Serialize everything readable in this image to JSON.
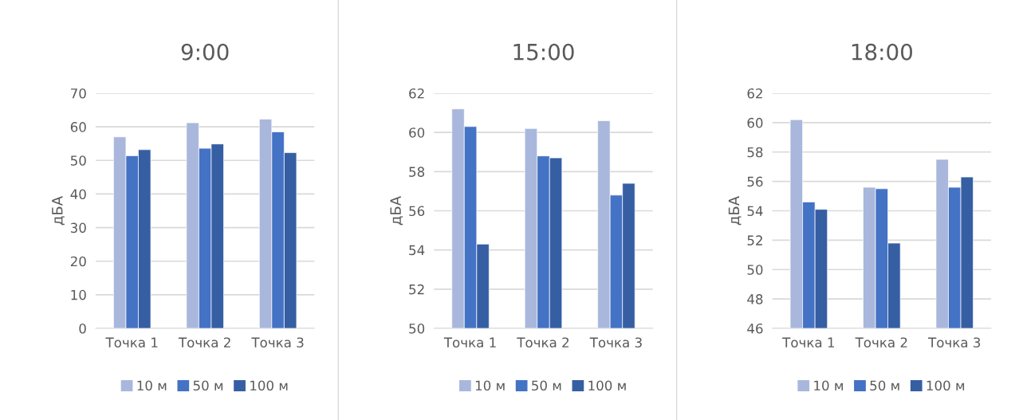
{
  "chart_data": [
    {
      "type": "bar",
      "title": "9:00",
      "ylabel": "дБА",
      "categories": [
        "Точка 1",
        "Точка 2",
        "Точка 3"
      ],
      "series": [
        {
          "name": "10 м",
          "color": "#a9b7dc",
          "values": [
            57.0,
            61.2,
            62.3
          ]
        },
        {
          "name": "50 м",
          "color": "#4472c4",
          "values": [
            51.4,
            53.6,
            58.5
          ]
        },
        {
          "name": "100 м",
          "color": "#365ea3",
          "values": [
            53.2,
            54.9,
            52.3
          ]
        }
      ],
      "ylim": [
        0,
        70
      ],
      "yticks": [
        0,
        10,
        20,
        30,
        40,
        50,
        60,
        70
      ],
      "grid": "y",
      "legend": "bottom"
    },
    {
      "type": "bar",
      "title": "15:00",
      "ylabel": "дБА",
      "categories": [
        "Точка 1",
        "Точка 2",
        "Точка 3"
      ],
      "series": [
        {
          "name": "10 м",
          "color": "#a9b7dc",
          "values": [
            61.2,
            60.2,
            60.6
          ]
        },
        {
          "name": "50 м",
          "color": "#4472c4",
          "values": [
            60.3,
            58.8,
            56.8
          ]
        },
        {
          "name": "100 м",
          "color": "#365ea3",
          "values": [
            54.3,
            58.7,
            57.4
          ]
        }
      ],
      "ylim": [
        50,
        62
      ],
      "yticks": [
        50,
        52,
        54,
        56,
        58,
        60,
        62
      ],
      "grid": "y",
      "legend": "bottom"
    },
    {
      "type": "bar",
      "title": "18:00",
      "ylabel": "дБА",
      "categories": [
        "Точка 1",
        "Точка 2",
        "Точка 3"
      ],
      "series": [
        {
          "name": "10 м",
          "color": "#a9b7dc",
          "values": [
            60.2,
            55.6,
            57.5
          ]
        },
        {
          "name": "50 м",
          "color": "#4472c4",
          "values": [
            54.6,
            55.5,
            55.6
          ]
        },
        {
          "name": "100 м",
          "color": "#365ea3",
          "values": [
            54.1,
            51.8,
            56.3
          ]
        }
      ],
      "ylim": [
        46,
        62
      ],
      "yticks": [
        46,
        48,
        50,
        52,
        54,
        56,
        58,
        60,
        62
      ],
      "grid": "y",
      "legend": "bottom"
    }
  ]
}
